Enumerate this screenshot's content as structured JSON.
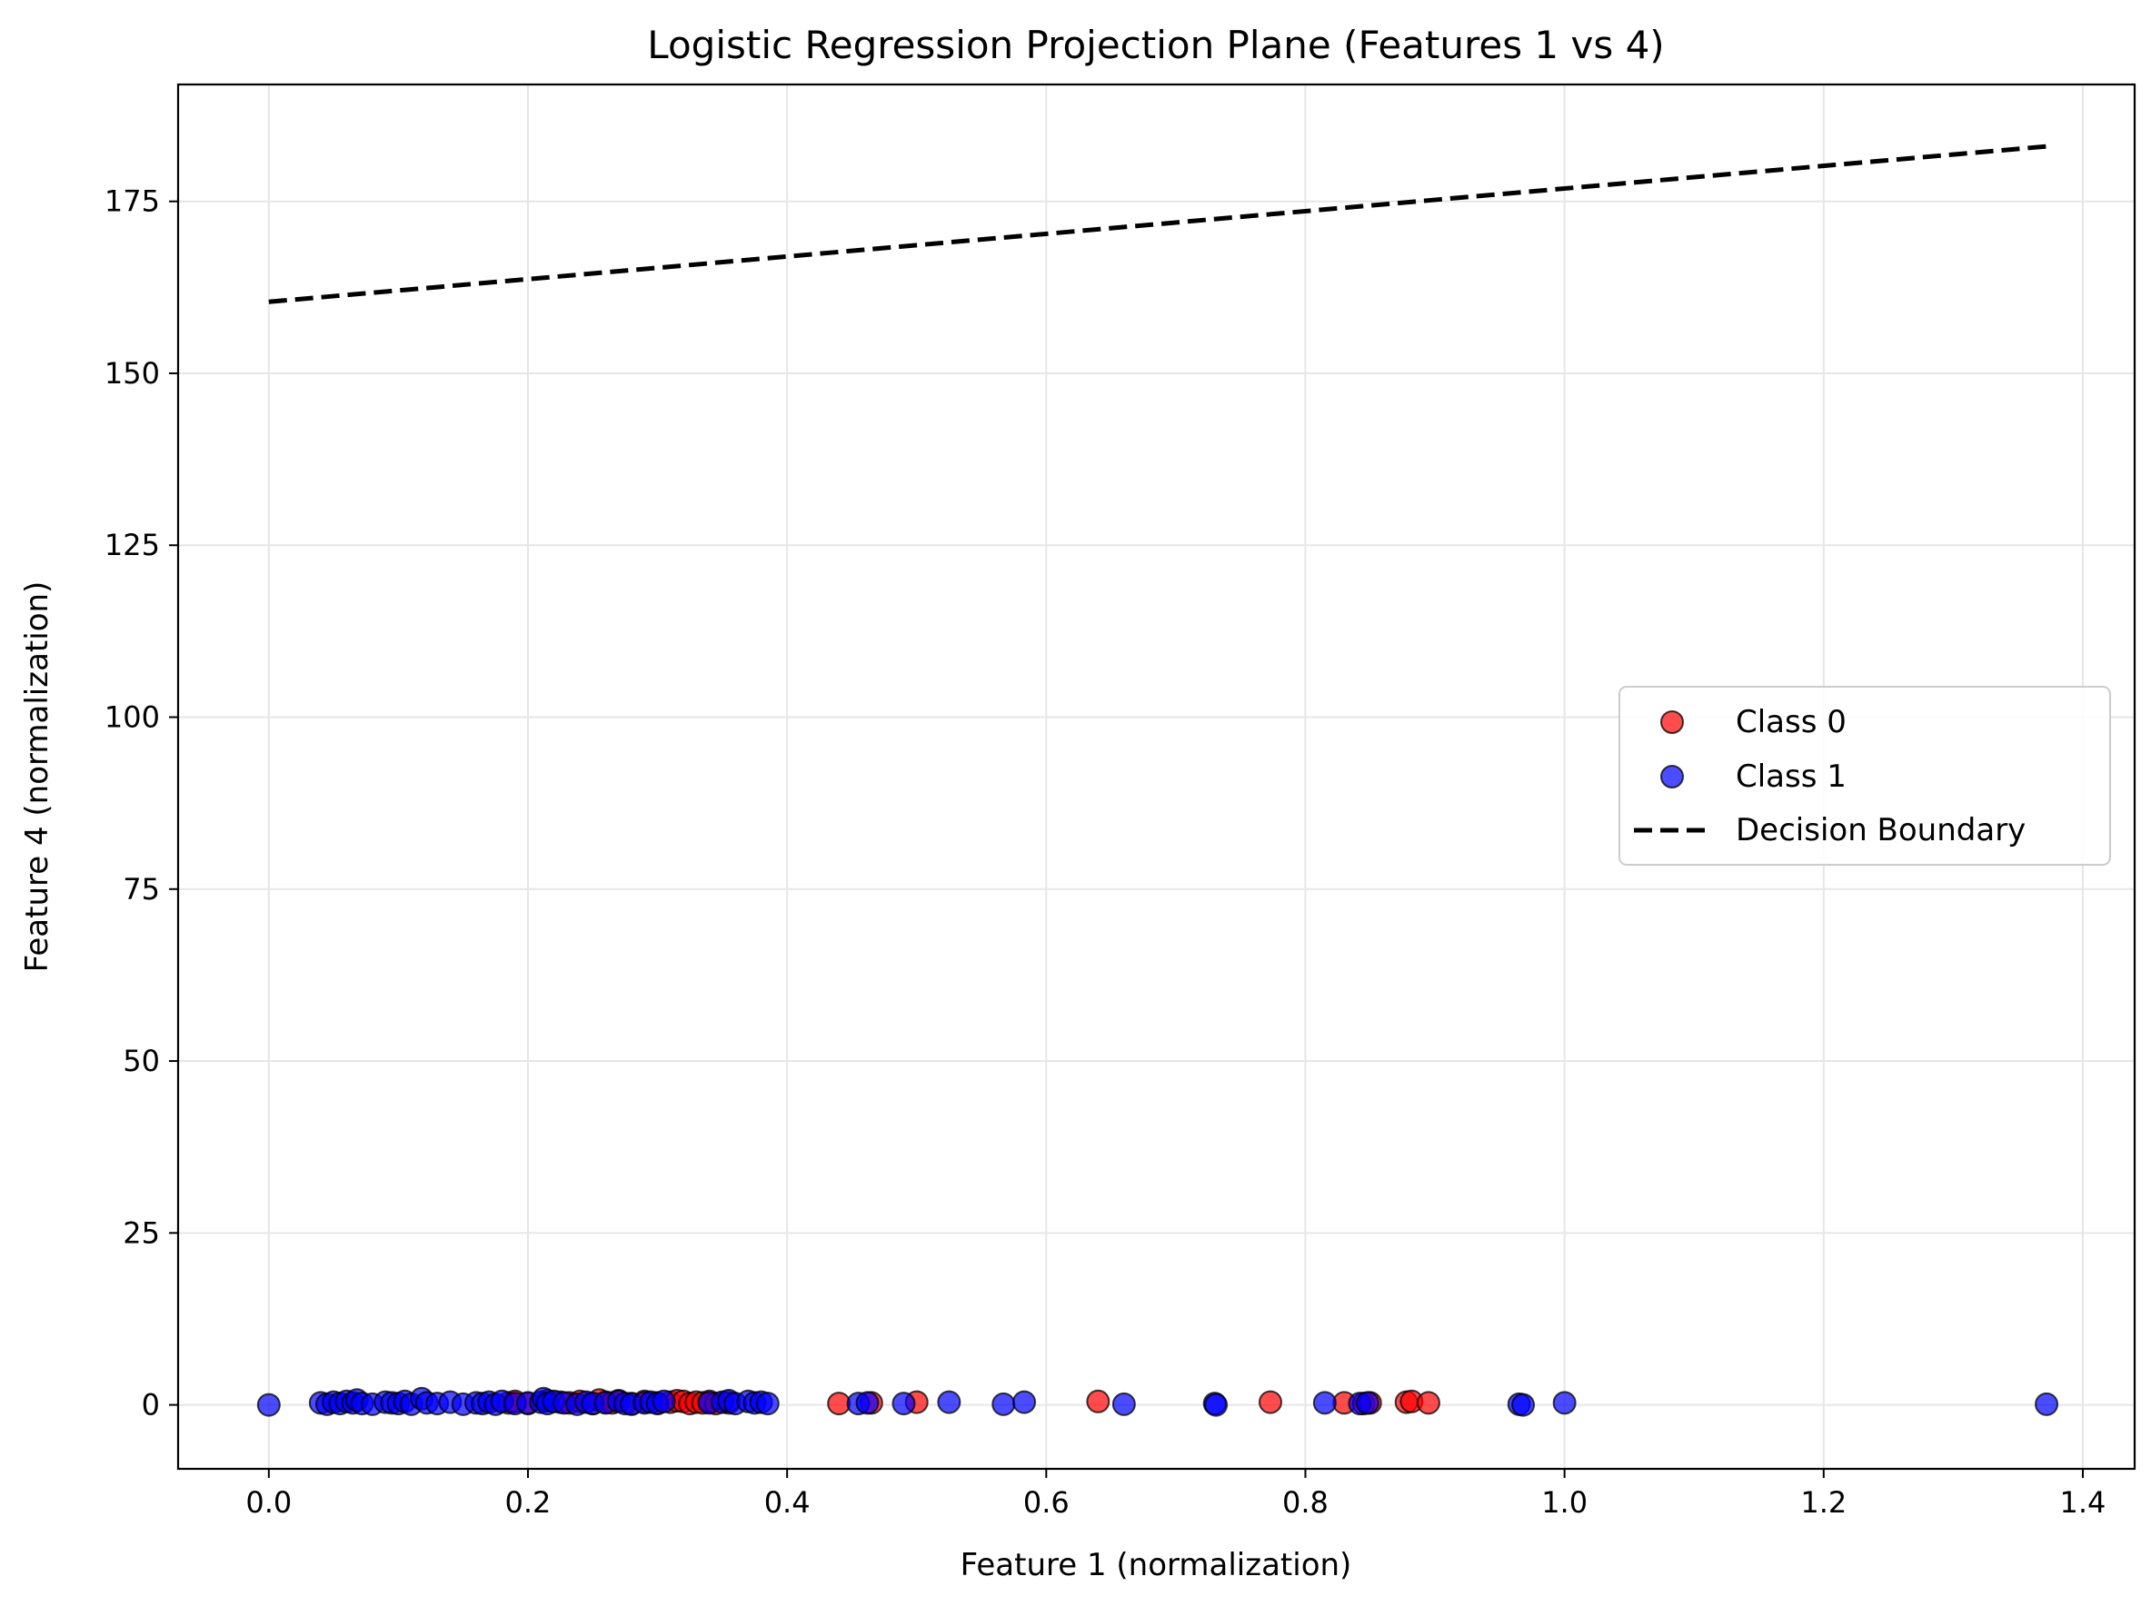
{
  "chart_data": {
    "type": "scatter",
    "title": "Logistic Regression Projection Plane (Features 1 vs 4)",
    "xlabel": "Feature 1 (normalization)",
    "ylabel": "Feature 4 (normalization)",
    "xlim": [
      -0.07,
      1.44
    ],
    "ylim": [
      -9.3,
      192
    ],
    "xticks": [
      0.0,
      0.2,
      0.4,
      0.6,
      0.8,
      1.0,
      1.2,
      1.4
    ],
    "xtick_labels": [
      "0.0",
      "0.2",
      "0.4",
      "0.6",
      "0.8",
      "1.0",
      "1.2",
      "1.4"
    ],
    "yticks": [
      0,
      25,
      50,
      75,
      100,
      125,
      150,
      175
    ],
    "ytick_labels": [
      "0",
      "25",
      "50",
      "75",
      "100",
      "125",
      "150",
      "175"
    ],
    "grid": true,
    "legend_position": "center-right",
    "series": [
      {
        "name": "Class 0",
        "kind": "scatter",
        "color": "#ff0000",
        "x": [
          0.185,
          0.19,
          0.2,
          0.215,
          0.225,
          0.232,
          0.24,
          0.25,
          0.255,
          0.26,
          0.265,
          0.27,
          0.28,
          0.29,
          0.3,
          0.31,
          0.315,
          0.32,
          0.325,
          0.33,
          0.335,
          0.34,
          0.345,
          0.355,
          0.44,
          0.465,
          0.5,
          0.64,
          0.773,
          0.83,
          0.845,
          0.85,
          0.878,
          0.882,
          0.895
        ],
        "y": [
          0.3,
          0.5,
          0.2,
          0.6,
          0.4,
          0.3,
          0.5,
          0.2,
          0.7,
          0.4,
          0.3,
          0.6,
          0.2,
          0.5,
          0.3,
          0.4,
          0.6,
          0.5,
          0.2,
          0.4,
          0.3,
          0.5,
          0.2,
          0.3,
          0.2,
          0.3,
          0.4,
          0.5,
          0.4,
          0.3,
          0.2,
          0.3,
          0.4,
          0.5,
          0.3
        ]
      },
      {
        "name": "Class 1",
        "kind": "scatter",
        "color": "#0000ff",
        "x": [
          0.0,
          0.04,
          0.045,
          0.05,
          0.055,
          0.06,
          0.065,
          0.068,
          0.072,
          0.08,
          0.09,
          0.095,
          0.1,
          0.105,
          0.11,
          0.118,
          0.122,
          0.13,
          0.14,
          0.15,
          0.16,
          0.165,
          0.17,
          0.175,
          0.18,
          0.19,
          0.2,
          0.21,
          0.212,
          0.215,
          0.22,
          0.228,
          0.238,
          0.245,
          0.25,
          0.26,
          0.27,
          0.275,
          0.28,
          0.29,
          0.295,
          0.3,
          0.305,
          0.34,
          0.35,
          0.355,
          0.36,
          0.37,
          0.375,
          0.38,
          0.385,
          0.455,
          0.462,
          0.49,
          0.525,
          0.567,
          0.583,
          0.66,
          0.73,
          0.731,
          0.815,
          0.842,
          0.848,
          0.965,
          0.968,
          1.0,
          1.372
        ],
        "y": [
          0.0,
          0.3,
          0.1,
          0.4,
          0.2,
          0.5,
          0.3,
          0.7,
          0.2,
          0.1,
          0.4,
          0.3,
          0.2,
          0.5,
          0.1,
          0.9,
          0.3,
          0.2,
          0.4,
          0.1,
          0.3,
          0.2,
          0.4,
          0.1,
          0.5,
          0.2,
          0.3,
          0.4,
          0.9,
          0.2,
          0.5,
          0.3,
          0.1,
          0.4,
          0.2,
          0.3,
          0.5,
          0.2,
          0.1,
          0.3,
          0.4,
          0.2,
          0.5,
          0.3,
          0.4,
          0.6,
          0.2,
          0.5,
          0.3,
          0.4,
          0.2,
          0.2,
          0.3,
          0.2,
          0.4,
          0.1,
          0.4,
          0.1,
          0.2,
          0.0,
          0.3,
          0.2,
          0.3,
          0.1,
          0.0,
          0.3,
          0.1
        ]
      },
      {
        "name": "Decision Boundary",
        "kind": "line",
        "color": "#000000",
        "x": [
          0.0,
          1.372
        ],
        "y": [
          160.4,
          183.0
        ]
      }
    ]
  }
}
